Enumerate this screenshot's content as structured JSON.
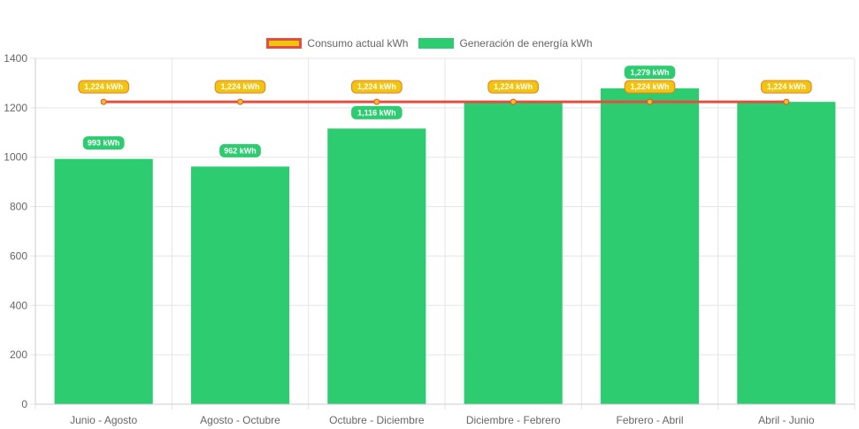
{
  "chart_data": {
    "type": "bar",
    "categories": [
      "Junio - Agosto",
      "Agosto - Octubre",
      "Octubre - Diciembre",
      "Diciembre - Febrero",
      "Febrero - Abril",
      "Abril - Junio"
    ],
    "series": [
      {
        "name": "Consumo actual kWh",
        "type": "line",
        "values": [
          1224,
          1224,
          1224,
          1224,
          1224,
          1224
        ],
        "labels": [
          "1,224 kWh",
          "1,224 kWh",
          "1,224 kWh",
          "1,224 kWh",
          "1,224 kWh",
          "1,224 kWh"
        ],
        "color": "#e74c3c",
        "fill": "#f1c40f"
      },
      {
        "name": "Generación de energía kWh",
        "type": "bar",
        "values": [
          993,
          962,
          1116,
          1224,
          1279,
          1224
        ],
        "labels": [
          "993 kWh",
          "962 kWh",
          "1,116 kWh",
          "1,224 kWh",
          "1,279 kWh",
          "1,224 kWh"
        ],
        "color": "#2ecc71"
      }
    ],
    "ylim": [
      0,
      1400
    ],
    "yticks": [
      "0",
      "200",
      "400",
      "600",
      "800",
      "1000",
      "1200",
      "1400"
    ],
    "grid": true,
    "legend_position": "top-center"
  }
}
